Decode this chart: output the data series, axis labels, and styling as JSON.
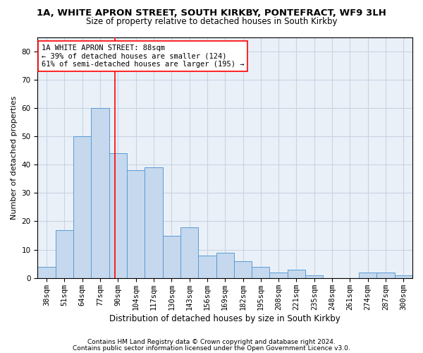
{
  "title1": "1A, WHITE APRON STREET, SOUTH KIRKBY, PONTEFRACT, WF9 3LH",
  "title2": "Size of property relative to detached houses in South Kirkby",
  "xlabel": "Distribution of detached houses by size in South Kirkby",
  "ylabel": "Number of detached properties",
  "categories": [
    "38sqm",
    "51sqm",
    "64sqm",
    "77sqm",
    "90sqm",
    "104sqm",
    "117sqm",
    "130sqm",
    "143sqm",
    "156sqm",
    "169sqm",
    "182sqm",
    "195sqm",
    "208sqm",
    "221sqm",
    "235sqm",
    "248sqm",
    "261sqm",
    "274sqm",
    "287sqm",
    "300sqm"
  ],
  "values": [
    4,
    17,
    50,
    60,
    44,
    38,
    39,
    15,
    18,
    8,
    9,
    6,
    4,
    2,
    3,
    1,
    0,
    0,
    2,
    2,
    1
  ],
  "bar_color": "#c5d8ed",
  "bar_edge_color": "#5b9bd5",
  "grid_color": "#c8d4e3",
  "bg_color": "#eaf0f8",
  "annotation_box_text": "1A WHITE APRON STREET: 88sqm\n← 39% of detached houses are smaller (124)\n61% of semi-detached houses are larger (195) →",
  "annotation_box_color": "white",
  "annotation_box_edge_color": "red",
  "vline_color": "red",
  "footer1": "Contains HM Land Registry data © Crown copyright and database right 2024.",
  "footer2": "Contains public sector information licensed under the Open Government Licence v3.0.",
  "ylim": [
    0,
    85
  ],
  "yticks": [
    0,
    10,
    20,
    30,
    40,
    50,
    60,
    70,
    80
  ],
  "title1_fontsize": 9.5,
  "title2_fontsize": 8.5,
  "xlabel_fontsize": 8.5,
  "ylabel_fontsize": 8,
  "tick_fontsize": 7.5,
  "annotation_fontsize": 7.5,
  "footer_fontsize": 6.5
}
